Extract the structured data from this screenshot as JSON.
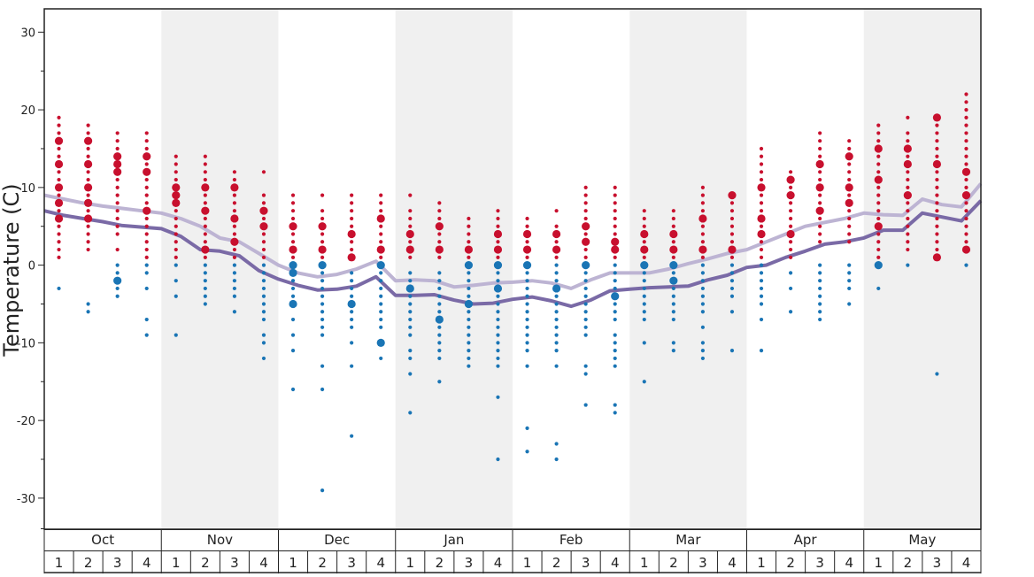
{
  "chart_data": {
    "type": "scatter",
    "ylabel": "Temperature (C)",
    "ylim": [
      -34,
      33
    ],
    "yticks": [
      30,
      20,
      10,
      0,
      -10,
      -20,
      -30
    ],
    "grid": false,
    "months": [
      "Oct",
      "Nov",
      "Dec",
      "Jan",
      "Feb",
      "Mar",
      "Apr",
      "May"
    ],
    "weeks": [
      "1",
      "2",
      "3",
      "4"
    ],
    "colors": {
      "warm_points": "#c8102e",
      "cold_points": "#1a75b5",
      "upper_line": "#bdb4d3",
      "lower_line": "#7a6aa6",
      "shaded_band": "#f0f0f0"
    },
    "series": [
      {
        "values": [
          9,
          8.5,
          8,
          7.6,
          7.3,
          7,
          6.7,
          6,
          5,
          3.5,
          3,
          1.5,
          0,
          -1,
          -1.5,
          -1.2,
          -0.5,
          0.5,
          -2,
          -1.9,
          -2,
          -2.8,
          -2.6,
          -2.3,
          -2.2,
          -2,
          -2.3,
          -3,
          -1.9,
          -1,
          -1,
          -1,
          -0.5,
          0.2,
          0.8,
          1.5,
          2,
          3,
          4,
          5,
          5.5,
          6,
          6.7,
          6.5,
          6.4,
          8.5,
          7.8,
          7.5,
          10.5
        ]
      },
      {
        "values": [
          7,
          6.4,
          6,
          5.6,
          5.1,
          4.9,
          4.7,
          3.7,
          2,
          1.8,
          1.2,
          -0.7,
          -1.8,
          -2.6,
          -3.2,
          -3.1,
          -2.7,
          -1.5,
          -3.9,
          -3.9,
          -3.8,
          -4.5,
          -5,
          -4.9,
          -4.4,
          -4.1,
          -4.6,
          -5.3,
          -4.5,
          -3.3,
          -3.1,
          -2.9,
          -2.8,
          -2.7,
          -1.9,
          -1.3,
          -0.3,
          0,
          1,
          1.8,
          2.7,
          3,
          3.5,
          4.5,
          4.5,
          6.7,
          6.2,
          5.7,
          8.3
        ]
      }
    ],
    "warm_points": [
      {
        "x": 1,
        "y": [
          19,
          18,
          17,
          16,
          15,
          14,
          13,
          12,
          11,
          10,
          9,
          8,
          7,
          6,
          5,
          4,
          3,
          2,
          1
        ],
        "big": [
          16,
          13,
          10,
          8,
          6
        ]
      },
      {
        "x": 2,
        "y": [
          18,
          17,
          16,
          15,
          14,
          13,
          12,
          11,
          10,
          9,
          8,
          7,
          6,
          5,
          4,
          3,
          2
        ],
        "big": [
          16,
          13,
          10,
          8,
          6
        ]
      },
      {
        "x": 3,
        "y": [
          17,
          16,
          15,
          14,
          13,
          12,
          11,
          10,
          9,
          8,
          7,
          6,
          5,
          4,
          2
        ],
        "big": [
          13,
          14,
          12
        ]
      },
      {
        "x": 4,
        "y": [
          17,
          16,
          15,
          14,
          13,
          12,
          11,
          10,
          9,
          8,
          7,
          6,
          5,
          4,
          3,
          2,
          1
        ],
        "big": [
          12,
          14,
          7
        ]
      },
      {
        "x": 5,
        "y": [
          14,
          13,
          12,
          11,
          10,
          9,
          8,
          7,
          6,
          5,
          4,
          3,
          2,
          1
        ],
        "big": [
          9,
          8,
          10
        ]
      },
      {
        "x": 6,
        "y": [
          14,
          13,
          12,
          11,
          10,
          9,
          8,
          7,
          6,
          5,
          4,
          3,
          2,
          1
        ],
        "big": [
          7,
          10,
          2
        ]
      },
      {
        "x": 7,
        "y": [
          12,
          11,
          10,
          9,
          8,
          7,
          6,
          5,
          4,
          3,
          2,
          1
        ],
        "big": [
          3,
          6,
          10
        ]
      },
      {
        "x": 8,
        "y": [
          12,
          9,
          8,
          7,
          6,
          5,
          4,
          3,
          2,
          1
        ],
        "big": [
          7,
          5
        ]
      },
      {
        "x": 9,
        "y": [
          9,
          8,
          7,
          6,
          5,
          4,
          3,
          2,
          1
        ],
        "big": [
          2,
          5
        ]
      },
      {
        "x": 10,
        "y": [
          9,
          7,
          6,
          5,
          4,
          3,
          2,
          1
        ],
        "big": [
          5,
          2
        ]
      },
      {
        "x": 11,
        "y": [
          9,
          8,
          7,
          6,
          5,
          4,
          3,
          2,
          1
        ],
        "big": [
          1,
          4
        ]
      },
      {
        "x": 12,
        "y": [
          9,
          8,
          7,
          6,
          5,
          4,
          3,
          2,
          1
        ],
        "big": [
          2,
          6
        ]
      },
      {
        "x": 13,
        "y": [
          9,
          7,
          6,
          5,
          4,
          3,
          2,
          1
        ],
        "big": [
          2,
          4
        ]
      },
      {
        "x": 14,
        "y": [
          8,
          7,
          6,
          5,
          4,
          3,
          2,
          1
        ],
        "big": [
          2,
          5
        ]
      },
      {
        "x": 15,
        "y": [
          6,
          5,
          4,
          3,
          2,
          1
        ],
        "big": [
          2
        ]
      },
      {
        "x": 16,
        "y": [
          7,
          6,
          5,
          4,
          3,
          2,
          1
        ],
        "big": [
          2,
          4
        ]
      },
      {
        "x": 17,
        "y": [
          6,
          5,
          4,
          3,
          2,
          1
        ],
        "big": [
          2,
          4
        ]
      },
      {
        "x": 18,
        "y": [
          7,
          5,
          4,
          3,
          2,
          1
        ],
        "big": [
          2,
          4
        ]
      },
      {
        "x": 19,
        "y": [
          10,
          9,
          8,
          7,
          6,
          5,
          4,
          3,
          2,
          1
        ],
        "big": [
          3,
          5
        ]
      },
      {
        "x": 20,
        "y": [
          10,
          9,
          8,
          7,
          6,
          5,
          4,
          3,
          2,
          1
        ],
        "big": [
          3,
          2
        ]
      },
      {
        "x": 21,
        "y": [
          7,
          6,
          5,
          4,
          3,
          2,
          1
        ],
        "big": [
          2,
          4
        ]
      },
      {
        "x": 22,
        "y": [
          7,
          6,
          5,
          4,
          3,
          2,
          1
        ],
        "big": [
          2,
          4
        ]
      },
      {
        "x": 23,
        "y": [
          10,
          9,
          8,
          7,
          6,
          5,
          4,
          3,
          2,
          1
        ],
        "big": [
          6,
          2
        ]
      },
      {
        "x": 24,
        "y": [
          9,
          8,
          7,
          6,
          5,
          4,
          3,
          2,
          1
        ],
        "big": [
          2,
          9
        ]
      },
      {
        "x": 25,
        "y": [
          15,
          14,
          13,
          12,
          11,
          10,
          9,
          8,
          7,
          6,
          5,
          4,
          3,
          2,
          1
        ],
        "big": [
          4,
          6,
          10
        ]
      },
      {
        "x": 26,
        "y": [
          12,
          11,
          10,
          9,
          8,
          7,
          6,
          5,
          4,
          3,
          2,
          1
        ],
        "big": [
          11,
          9,
          4
        ]
      },
      {
        "x": 27,
        "y": [
          17,
          16,
          15,
          14,
          13,
          12,
          11,
          10,
          9,
          8,
          7,
          6,
          5,
          4,
          3
        ],
        "big": [
          13,
          7,
          10
        ]
      },
      {
        "x": 28,
        "y": [
          16,
          15,
          14,
          13,
          12,
          11,
          10,
          9,
          8,
          7,
          6,
          5,
          4,
          3
        ],
        "big": [
          10,
          8,
          14
        ]
      },
      {
        "x": 29,
        "y": [
          18,
          17,
          16,
          15,
          14,
          13,
          12,
          11,
          10,
          9,
          8,
          7,
          6,
          5,
          4,
          3,
          2,
          1
        ],
        "big": [
          11,
          5,
          15
        ]
      },
      {
        "x": 30,
        "y": [
          19,
          17,
          16,
          15,
          14,
          13,
          12,
          11,
          10,
          9,
          8,
          7,
          6,
          5,
          4,
          3,
          2
        ],
        "big": [
          15,
          13,
          9
        ]
      },
      {
        "x": 31,
        "y": [
          19,
          18,
          17,
          16,
          15,
          14,
          13,
          12,
          11,
          10,
          9,
          8,
          7,
          6,
          5,
          4,
          3,
          2,
          1
        ],
        "big": [
          19,
          13,
          1
        ]
      },
      {
        "x": 32,
        "y": [
          22,
          21,
          20,
          19,
          18,
          17,
          16,
          15,
          14,
          13,
          12,
          11,
          10,
          9,
          8,
          7,
          6,
          5,
          4,
          3,
          2
        ],
        "big": [
          12,
          9,
          2
        ]
      }
    ],
    "cold_points": [
      {
        "x": 1,
        "y": [
          -3
        ],
        "big": []
      },
      {
        "x": 2,
        "y": [
          -5,
          -6
        ],
        "big": []
      },
      {
        "x": 3,
        "y": [
          0,
          -1,
          -2,
          -3,
          -4
        ],
        "big": [
          -2
        ]
      },
      {
        "x": 4,
        "y": [
          0,
          -1,
          -3,
          -7,
          -9
        ],
        "big": []
      },
      {
        "x": 5,
        "y": [
          0,
          -2,
          -4,
          -9
        ],
        "big": []
      },
      {
        "x": 6,
        "y": [
          0,
          -1,
          -2,
          -3,
          -4,
          -5
        ],
        "big": []
      },
      {
        "x": 7,
        "y": [
          0,
          -1,
          -2,
          -3,
          -4,
          -6
        ],
        "big": []
      },
      {
        "x": 8,
        "y": [
          0,
          -1,
          -2,
          -3,
          -4,
          -5,
          -6,
          -7,
          -9,
          -10,
          -12
        ],
        "big": []
      },
      {
        "x": 9,
        "y": [
          0,
          -1,
          -2,
          -3,
          -4,
          -5,
          -7,
          -9,
          -11,
          -16
        ],
        "big": [
          0,
          -1,
          -5
        ]
      },
      {
        "x": 10,
        "y": [
          0,
          -1,
          -2,
          -3,
          -4,
          -5,
          -6,
          -7,
          -8,
          -9,
          -13,
          -16,
          -29
        ],
        "big": [
          0
        ]
      },
      {
        "x": 11,
        "y": [
          -1,
          -2,
          -3,
          -4,
          -5,
          -6,
          -7,
          -8,
          -10,
          -13,
          -22
        ],
        "big": [
          -5
        ]
      },
      {
        "x": 12,
        "y": [
          0,
          -1,
          -2,
          -3,
          -4,
          -5,
          -6,
          -7,
          -8,
          -10,
          -12
        ],
        "big": [
          0,
          -10
        ]
      },
      {
        "x": 13,
        "y": [
          -1,
          -2,
          -3,
          -4,
          -5,
          -6,
          -7,
          -8,
          -9,
          -11,
          -12,
          -14,
          -19
        ],
        "big": [
          -3
        ]
      },
      {
        "x": 14,
        "y": [
          -1,
          -2,
          -3,
          -4,
          -5,
          -6,
          -7,
          -8,
          -9,
          -10,
          -11,
          -12,
          -15
        ],
        "big": [
          -7
        ]
      },
      {
        "x": 15,
        "y": [
          0,
          -1,
          -2,
          -3,
          -4,
          -5,
          -6,
          -7,
          -8,
          -9,
          -10,
          -11,
          -12,
          -13
        ],
        "big": [
          0,
          -5
        ]
      },
      {
        "x": 16,
        "y": [
          0,
          -1,
          -2,
          -3,
          -4,
          -5,
          -6,
          -7,
          -8,
          -9,
          -10,
          -11,
          -12,
          -13,
          -17,
          -25
        ],
        "big": [
          0,
          -3
        ]
      },
      {
        "x": 17,
        "y": [
          0,
          -1,
          -2,
          -3,
          -4,
          -5,
          -6,
          -7,
          -8,
          -9,
          -10,
          -11,
          -13,
          -21,
          -24
        ],
        "big": [
          0
        ]
      },
      {
        "x": 18,
        "y": [
          0,
          -1,
          -2,
          -3,
          -4,
          -5,
          -6,
          -7,
          -8,
          -9,
          -10,
          -11,
          -13,
          -23,
          -25
        ],
        "big": [
          -3
        ]
      },
      {
        "x": 19,
        "y": [
          0,
          -1,
          -2,
          -3,
          -4,
          -5,
          -6,
          -7,
          -8,
          -9,
          -13,
          -14,
          -18
        ],
        "big": [
          0
        ]
      },
      {
        "x": 20,
        "y": [
          0,
          -1,
          -2,
          -3,
          -4,
          -5,
          -6,
          -7,
          -9,
          -10,
          -11,
          -12,
          -13,
          -18,
          -19
        ],
        "big": [
          -4
        ]
      },
      {
        "x": 21,
        "y": [
          0,
          -1,
          -2,
          -3,
          -4,
          -5,
          -6,
          -7,
          -10,
          -15
        ],
        "big": [
          0
        ]
      },
      {
        "x": 22,
        "y": [
          0,
          -1,
          -2,
          -3,
          -4,
          -5,
          -6,
          -7,
          -10,
          -11
        ],
        "big": [
          0,
          -2
        ]
      },
      {
        "x": 23,
        "y": [
          0,
          -1,
          -2,
          -3,
          -4,
          -5,
          -6,
          -8,
          -10,
          -11,
          -12
        ],
        "big": []
      },
      {
        "x": 24,
        "y": [
          0,
          -1,
          -2,
          -3,
          -4,
          -6,
          -11
        ],
        "big": []
      },
      {
        "x": 25,
        "y": [
          0,
          -1,
          -2,
          -3,
          -4,
          -5,
          -7,
          -11
        ],
        "big": []
      },
      {
        "x": 26,
        "y": [
          -1,
          -3,
          -6
        ],
        "big": []
      },
      {
        "x": 27,
        "y": [
          0,
          -1,
          -2,
          -3,
          -4,
          -5,
          -6,
          -7
        ],
        "big": []
      },
      {
        "x": 28,
        "y": [
          0,
          -1,
          -2,
          -3,
          -5
        ],
        "big": []
      },
      {
        "x": 29,
        "y": [
          0,
          -3
        ],
        "big": [
          0
        ]
      },
      {
        "x": 30,
        "y": [
          0
        ],
        "big": []
      },
      {
        "x": 31,
        "y": [
          -14
        ],
        "big": []
      },
      {
        "x": 32,
        "y": [
          0
        ],
        "big": []
      }
    ]
  }
}
